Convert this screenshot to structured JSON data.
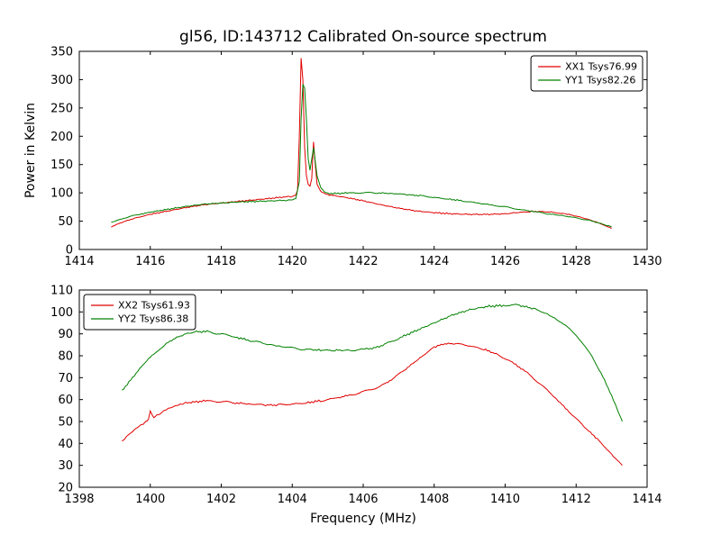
{
  "figure": {
    "title": "gl56, ID:143712 Calibrated On-source spectrum",
    "background": "#ffffff",
    "axis_color": "#000000"
  },
  "chart_data": [
    {
      "type": "line",
      "title": "gl56, ID:143712 Calibrated On-source spectrum",
      "xlabel": "",
      "ylabel": "Power in Kelvin",
      "xlim": [
        1414,
        1430
      ],
      "ylim": [
        0,
        350
      ],
      "xticks": [
        1414,
        1416,
        1418,
        1420,
        1422,
        1424,
        1426,
        1428,
        1430
      ],
      "yticks": [
        0,
        50,
        100,
        150,
        200,
        250,
        300,
        350
      ],
      "grid": false,
      "legend_position": "top-right",
      "series": [
        {
          "name": "XX1 Tsys76.99",
          "color": "#e00000",
          "noise": 1.5,
          "x": [
            1414.9,
            1415.2,
            1415.6,
            1416.0,
            1416.5,
            1417.0,
            1417.5,
            1418.0,
            1418.5,
            1419.0,
            1419.5,
            1419.8,
            1420.0,
            1420.1,
            1420.15,
            1420.2,
            1420.25,
            1420.3,
            1420.35,
            1420.4,
            1420.45,
            1420.5,
            1420.55,
            1420.6,
            1420.65,
            1420.7,
            1420.8,
            1420.9,
            1421.0,
            1421.5,
            1422.0,
            1422.5,
            1423.0,
            1423.5,
            1424.0,
            1424.5,
            1425.0,
            1425.5,
            1426.0,
            1426.3,
            1426.7,
            1427.0,
            1427.3,
            1427.7,
            1428.0,
            1428.3,
            1428.6,
            1428.9,
            1429.0
          ],
          "y": [
            40,
            48,
            56,
            62,
            68,
            74,
            79,
            82,
            85,
            88,
            91,
            93,
            94,
            96,
            105,
            200,
            338,
            300,
            180,
            130,
            115,
            112,
            125,
            190,
            150,
            115,
            103,
            99,
            97,
            92,
            86,
            79,
            73,
            68,
            65,
            63,
            62,
            62,
            63,
            65,
            67,
            67,
            66,
            63,
            59,
            54,
            48,
            40,
            37
          ]
        },
        {
          "name": "YY1 Tsys82.26",
          "color": "#008000",
          "noise": 1.5,
          "x": [
            1414.9,
            1415.3,
            1415.7,
            1416.0,
            1416.5,
            1417.0,
            1417.5,
            1418.0,
            1418.5,
            1419.0,
            1419.5,
            1419.8,
            1420.0,
            1420.1,
            1420.2,
            1420.25,
            1420.3,
            1420.35,
            1420.4,
            1420.45,
            1420.5,
            1420.55,
            1420.6,
            1420.7,
            1420.8,
            1420.9,
            1421.0,
            1421.3,
            1421.6,
            1422.0,
            1422.4,
            1422.8,
            1423.2,
            1423.6,
            1424.0,
            1424.4,
            1424.8,
            1425.2,
            1425.6,
            1426.0,
            1426.4,
            1426.8,
            1427.2,
            1427.6,
            1428.0,
            1428.4,
            1428.8,
            1429.0
          ],
          "y": [
            48,
            56,
            62,
            66,
            71,
            76,
            80,
            82,
            84,
            85,
            86,
            87,
            88,
            90,
            120,
            230,
            292,
            285,
            230,
            160,
            140,
            160,
            180,
            130,
            110,
            102,
            99,
            99,
            100,
            100,
            100,
            99,
            97,
            95,
            92,
            89,
            86,
            82,
            79,
            75,
            71,
            67,
            63,
            60,
            56,
            51,
            44,
            40
          ]
        }
      ]
    },
    {
      "type": "line",
      "title": "",
      "xlabel": "Frequency (MHz)",
      "ylabel": "",
      "xlim": [
        1398,
        1414
      ],
      "ylim": [
        20,
        110
      ],
      "xticks": [
        1398,
        1400,
        1402,
        1404,
        1406,
        1408,
        1410,
        1412,
        1414
      ],
      "yticks": [
        20,
        30,
        40,
        50,
        60,
        70,
        80,
        90,
        100,
        110
      ],
      "grid": false,
      "legend_position": "top-left",
      "series": [
        {
          "name": "XX2 Tsys61.93",
          "color": "#e00000",
          "noise": 0.55,
          "x": [
            1399.2,
            1399.4,
            1399.6,
            1399.8,
            1399.95,
            1400.0,
            1400.05,
            1400.1,
            1400.3,
            1400.5,
            1400.8,
            1401.0,
            1401.3,
            1401.6,
            1402.0,
            1402.4,
            1402.8,
            1403.2,
            1403.6,
            1404.0,
            1404.4,
            1404.8,
            1405.2,
            1405.6,
            1406.0,
            1406.4,
            1406.8,
            1407.2,
            1407.6,
            1408.0,
            1408.3,
            1408.6,
            1409.0,
            1409.4,
            1409.8,
            1410.2,
            1410.6,
            1411.0,
            1411.4,
            1411.8,
            1412.2,
            1412.6,
            1413.0,
            1413.3
          ],
          "y": [
            41,
            44,
            47,
            49,
            51,
            55,
            53,
            52,
            54,
            56,
            57.5,
            58.5,
            59,
            59.5,
            59,
            58.5,
            58,
            57.5,
            57.5,
            58,
            58.5,
            59.5,
            60.5,
            62,
            63.5,
            65.5,
            69,
            74,
            79,
            84,
            85.5,
            85.5,
            84.5,
            83,
            80.5,
            77,
            72.5,
            67,
            61,
            54.5,
            48,
            42,
            35,
            30
          ]
        },
        {
          "name": "YY2 Tsys86.38",
          "color": "#008000",
          "noise": 0.6,
          "x": [
            1399.2,
            1399.5,
            1399.8,
            1400.1,
            1400.4,
            1400.7,
            1401.0,
            1401.3,
            1401.6,
            1402.0,
            1402.4,
            1402.8,
            1403.2,
            1403.6,
            1404.0,
            1404.4,
            1404.8,
            1405.2,
            1405.6,
            1406.0,
            1406.3,
            1406.6,
            1407.0,
            1407.5,
            1408.0,
            1408.5,
            1409.0,
            1409.5,
            1410.0,
            1410.4,
            1410.8,
            1411.2,
            1411.6,
            1412.0,
            1412.4,
            1412.8,
            1413.1,
            1413.3
          ],
          "y": [
            64,
            70,
            76,
            81,
            85,
            88,
            90,
            91,
            91,
            90,
            88.5,
            87,
            85.5,
            84.5,
            83.5,
            83,
            82.5,
            82.5,
            82.5,
            83,
            83.5,
            85,
            88,
            91.5,
            95,
            98.5,
            101,
            102.5,
            103,
            103,
            101.5,
            99,
            95,
            89.5,
            81,
            69,
            58,
            50
          ]
        }
      ]
    }
  ]
}
